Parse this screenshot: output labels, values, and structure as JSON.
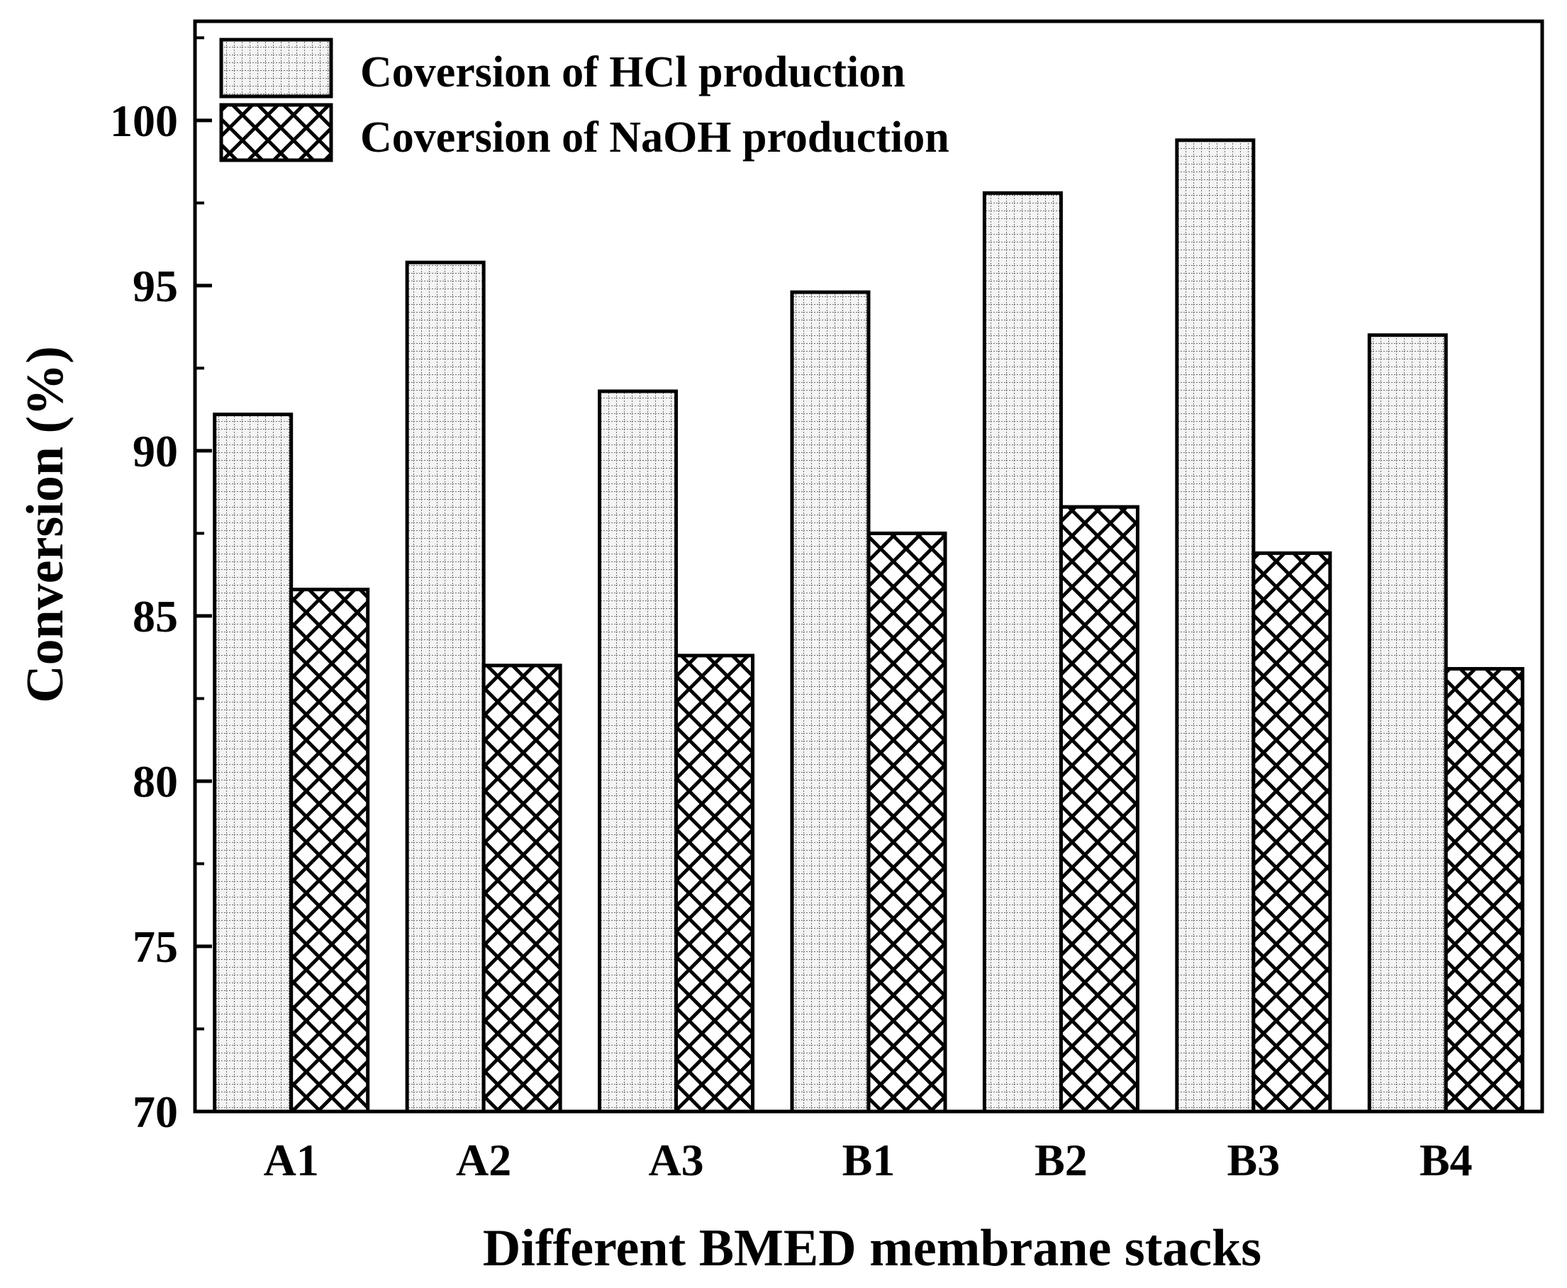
{
  "chart_data": {
    "type": "bar",
    "title": "",
    "xlabel": "Different BMED membrane stacks",
    "ylabel": "Conversion (%)",
    "categories": [
      "A1",
      "A2",
      "A3",
      "B1",
      "B2",
      "B3",
      "B4"
    ],
    "series": [
      {
        "name": "Coversion of HCl production",
        "pattern": "dotted-grid",
        "values": [
          91.1,
          95.7,
          91.8,
          94.8,
          97.8,
          99.4,
          93.5
        ]
      },
      {
        "name": "Coversion of NaOH production",
        "pattern": "crosshatch",
        "values": [
          85.8,
          83.5,
          83.8,
          87.5,
          88.3,
          86.9,
          83.4
        ]
      }
    ],
    "ylim": [
      70,
      103
    ],
    "yticks": [
      70,
      75,
      80,
      85,
      90,
      95,
      100
    ],
    "yticks_minor": [
      72.5,
      77.5,
      82.5,
      87.5,
      92.5,
      97.5,
      102.5
    ],
    "grid": false,
    "legend_position": "top-left",
    "colors": {
      "stroke": "#000000",
      "background": "#ffffff",
      "hcl_fill": "#f2f2f2"
    }
  }
}
